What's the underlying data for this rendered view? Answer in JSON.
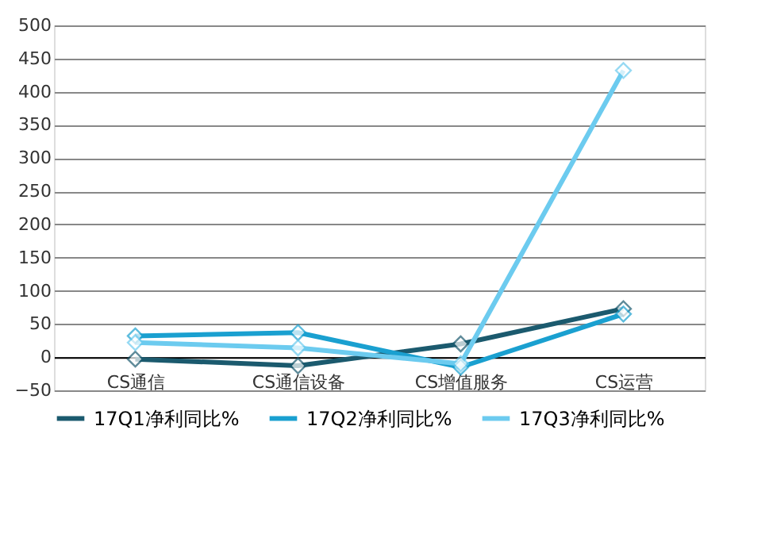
{
  "chart_data": {
    "type": "line",
    "categories": [
      "CS通信",
      "CS通信设备",
      "CS增值服务",
      "CS运营"
    ],
    "series": [
      {
        "name": "17Q1净利同比%",
        "color": "#1b5a6e",
        "values": [
          -3,
          -13,
          20,
          73
        ]
      },
      {
        "name": "17Q2净利同比%",
        "color": "#1aa0d0",
        "values": [
          32,
          37,
          -15,
          65
        ]
      },
      {
        "name": "17Q3净利同比%",
        "color": "#6ccbef",
        "values": [
          22,
          14,
          -10,
          432
        ]
      }
    ],
    "ylim": [
      -50,
      500
    ],
    "yticks": [
      -50,
      0,
      50,
      100,
      150,
      200,
      250,
      300,
      350,
      400,
      450,
      500
    ],
    "grid": "y",
    "legend": "bottom",
    "marker": "diamond",
    "line_style": "solid"
  }
}
